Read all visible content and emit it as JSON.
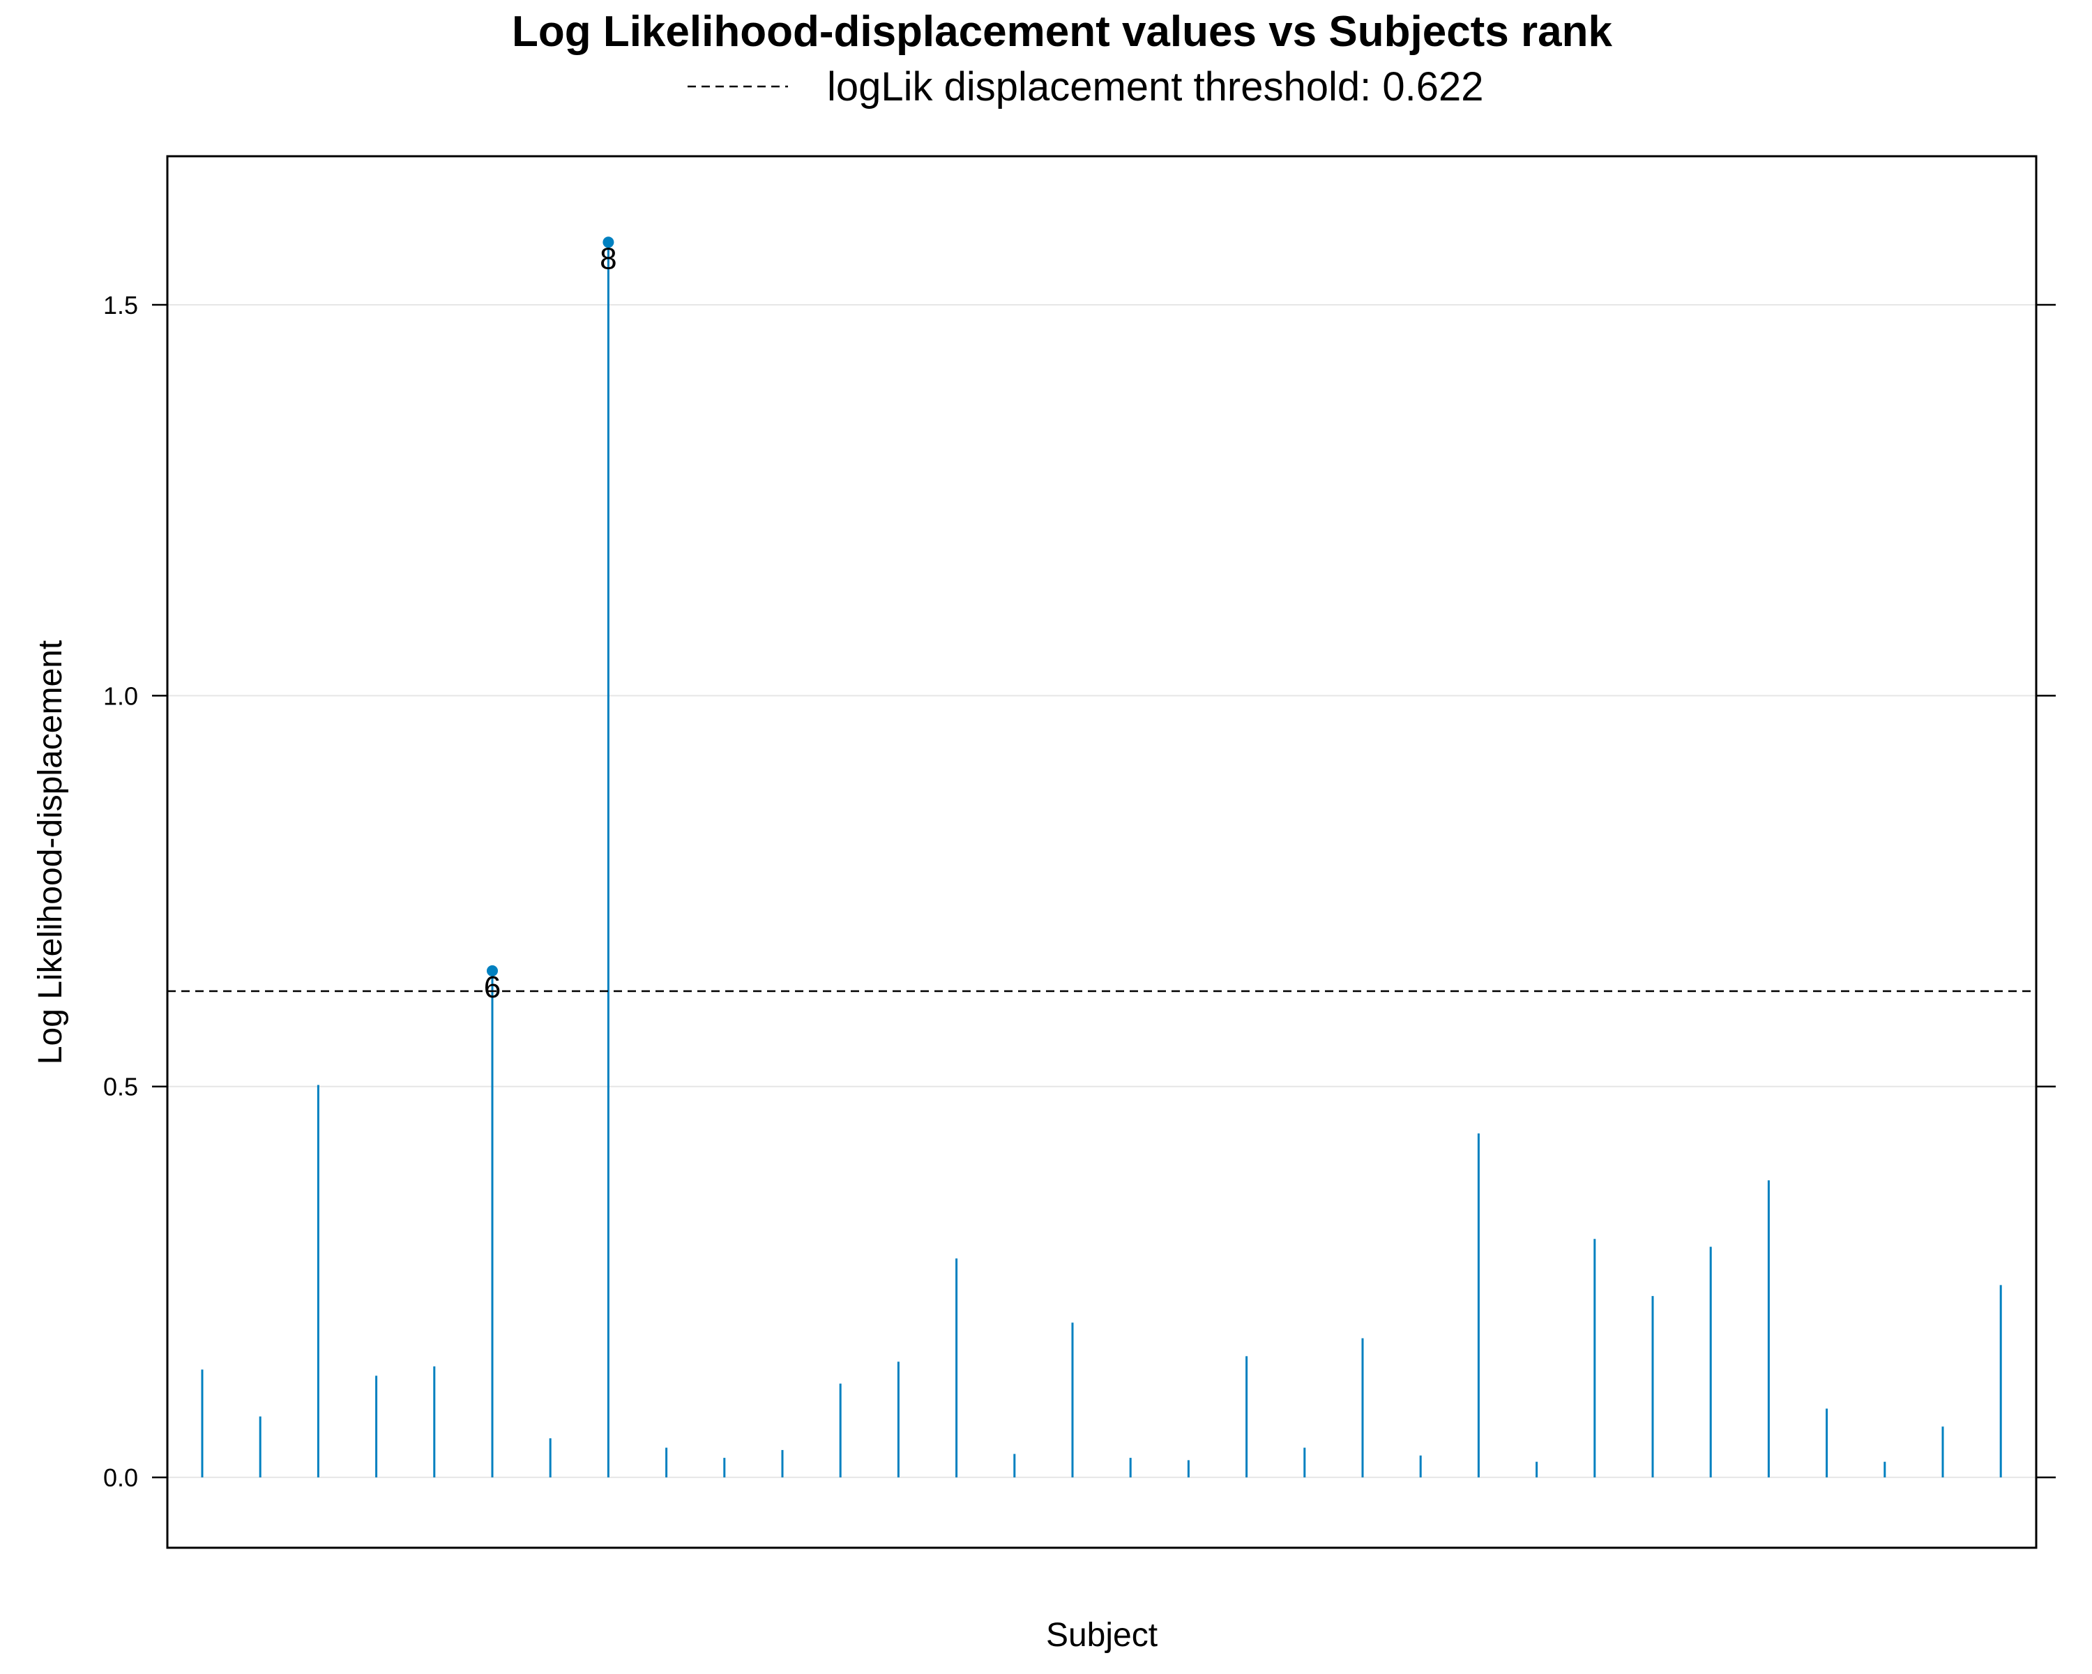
{
  "chart_data": {
    "type": "bar",
    "title": "Log Likelihood-displacement values vs Subjects rank",
    "legend": {
      "position": "top",
      "entries": [
        {
          "label": "logLik displacement threshold: 0.622",
          "style": "dashed"
        }
      ]
    },
    "xlabel": "Subject",
    "ylabel": "Log Likelihood-displacement",
    "ylim": [
      -0.09,
      1.69
    ],
    "yticks": [
      "0.0",
      "0.5",
      "1.0",
      "1.5"
    ],
    "grid": "horizontal",
    "threshold": 0.622,
    "x": [
      1,
      2,
      3,
      4,
      5,
      6,
      7,
      8,
      9,
      10,
      11,
      12,
      13,
      14,
      15,
      16,
      17,
      18,
      19,
      20,
      21,
      22,
      23,
      24,
      25,
      26,
      27,
      28,
      29,
      30,
      31,
      32
    ],
    "values": [
      0.138,
      0.078,
      0.502,
      0.13,
      0.142,
      0.648,
      0.05,
      1.58,
      0.038,
      0.025,
      0.035,
      0.12,
      0.148,
      0.28,
      0.03,
      0.198,
      0.025,
      0.022,
      0.155,
      0.038,
      0.178,
      0.028,
      0.44,
      0.02,
      0.305,
      0.232,
      0.295,
      0.38,
      0.088,
      0.02,
      0.065,
      0.246
    ],
    "labeled_points": [
      {
        "x": 6,
        "label": "6"
      },
      {
        "x": 8,
        "label": "8"
      }
    ],
    "colors": {
      "series": "#0080c0",
      "grid": "#e6e6e6",
      "threshold": "#000000"
    }
  }
}
